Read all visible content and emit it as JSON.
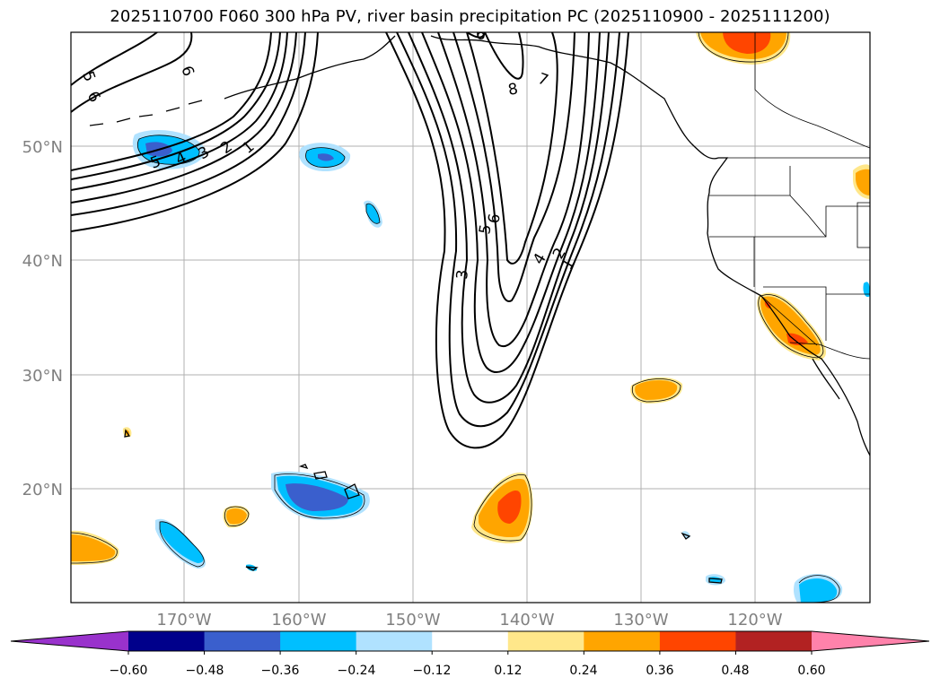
{
  "title": "2025110700 F060 300 hPa PV, river basin precipitation PC (2025110900 - 2025111200)",
  "map": {
    "lat_labels": [
      "50°N",
      "40°N",
      "30°N",
      "20°N"
    ],
    "lon_labels": [
      "170°W",
      "160°W",
      "150°W",
      "140°W",
      "130°W",
      "120°W"
    ],
    "pv_contour_labels": [
      "5",
      "6",
      "6",
      "5",
      "4",
      "3",
      "2",
      "1",
      "6",
      "7",
      "8",
      "6",
      "5",
      "3",
      "4",
      "2",
      "1"
    ]
  },
  "colorbar": {
    "tick_labels": [
      "−0.60",
      "−0.48",
      "−0.36",
      "−0.24",
      "−0.12",
      "0.12",
      "0.24",
      "0.36",
      "0.48",
      "0.60"
    ],
    "colors": [
      "#9932CC",
      "#00008B",
      "#3A5FCD",
      "#00BFFF",
      "#B0E2FF",
      "#FFFFFF",
      "#FFE78A",
      "#FFA500",
      "#FF4500",
      "#B22222",
      "#FF82AB"
    ]
  }
}
